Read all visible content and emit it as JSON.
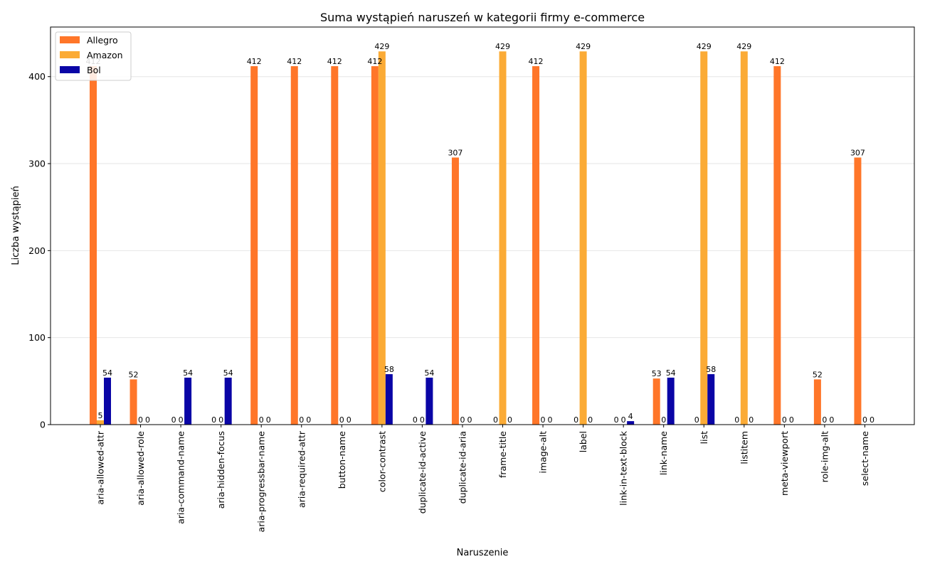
{
  "chart_data": {
    "type": "bar",
    "title": "Suma wystąpień naruszeń w kategorii firmy e-commerce",
    "xlabel": "Naruszenie",
    "ylabel": "Liczba wystąpień",
    "ylim": [
      0,
      457
    ],
    "yticks": [
      0,
      100,
      200,
      300,
      400
    ],
    "grid": "horizontal",
    "legend_position": "top-left",
    "categories": [
      "aria-allowed-attr",
      "aria-allowed-role",
      "aria-command-name",
      "aria-hidden-focus",
      "aria-progressbar-name",
      "aria-required-attr",
      "button-name",
      "color-contrast",
      "duplicate-id-active",
      "duplicate-id-aria",
      "frame-title",
      "image-alt",
      "label",
      "link-in-text-block",
      "link-name",
      "list",
      "listitem",
      "meta-viewport",
      "role-img-alt",
      "select-name"
    ],
    "series": [
      {
        "name": "Allegro",
        "color": "#ff7629",
        "values": [
          412,
          52,
          0,
          0,
          412,
          412,
          412,
          412,
          0,
          307,
          0,
          412,
          0,
          0,
          53,
          0,
          0,
          412,
          52,
          307
        ]
      },
      {
        "name": "Amazon",
        "color": "#fbab36",
        "values": [
          5,
          0,
          0,
          0,
          0,
          0,
          0,
          429,
          0,
          0,
          429,
          0,
          429,
          0,
          0,
          429,
          429,
          0,
          0,
          0
        ]
      },
      {
        "name": "Bol",
        "color": "#0a05a6",
        "values": [
          54,
          0,
          54,
          54,
          0,
          0,
          0,
          58,
          54,
          0,
          0,
          0,
          0,
          4,
          54,
          58,
          0,
          0,
          0,
          0
        ]
      }
    ]
  }
}
